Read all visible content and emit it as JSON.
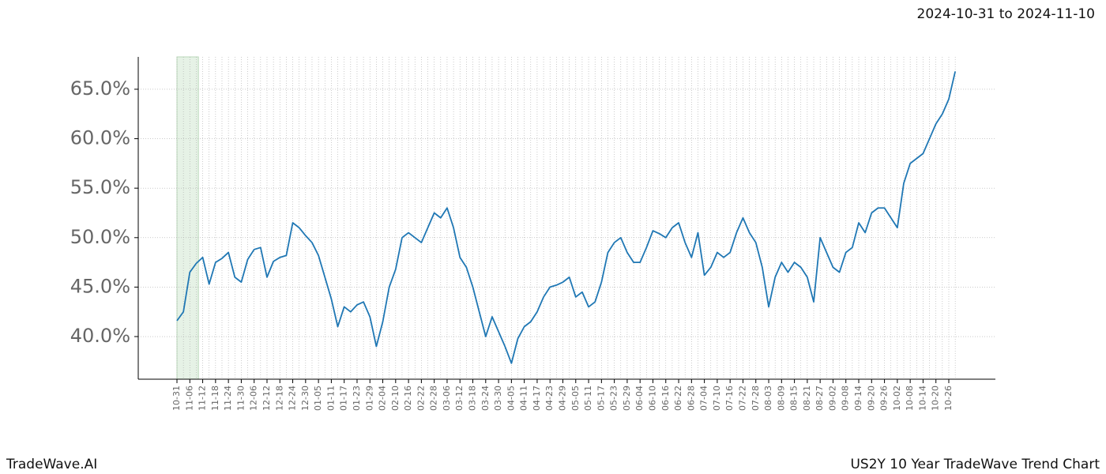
{
  "chart_data": {
    "type": "line",
    "subtitle": "2024-10-31 to 2024-11-10",
    "footer_left": "TradeWave.AI",
    "footer_right": "US2Y 10 Year TradeWave Trend Chart",
    "categories": [
      "10-31",
      null,
      "11-06",
      null,
      "11-12",
      null,
      "11-18",
      null,
      "11-24",
      null,
      "11-30",
      null,
      "12-06",
      null,
      "12-12",
      null,
      "12-18",
      null,
      "12-24",
      null,
      "12-30",
      null,
      "01-05",
      null,
      "01-11",
      null,
      "01-17",
      null,
      "01-23",
      null,
      "01-29",
      null,
      "02-04",
      null,
      "02-10",
      null,
      "02-16",
      null,
      "02-22",
      null,
      "02-28",
      null,
      "03-06",
      null,
      "03-12",
      null,
      "03-18",
      null,
      "03-24",
      null,
      "03-30",
      null,
      "04-05",
      null,
      "04-11",
      null,
      "04-17",
      null,
      "04-23",
      null,
      "04-29",
      null,
      "05-05",
      null,
      "05-11",
      null,
      "05-17",
      null,
      "05-23",
      null,
      "05-29",
      null,
      "06-04",
      null,
      "06-10",
      null,
      "06-16",
      null,
      "06-22",
      null,
      "06-28",
      null,
      "07-04",
      null,
      "07-10",
      null,
      "07-16",
      null,
      "07-22",
      null,
      "07-28",
      null,
      "08-03",
      null,
      "08-09",
      null,
      "08-15",
      null,
      "08-21",
      null,
      "08-27",
      null,
      "09-02",
      null,
      "09-08",
      null,
      "09-14",
      null,
      "09-20",
      null,
      "09-26",
      null,
      "10-02",
      null,
      "10-08",
      null,
      "10-14",
      null,
      "10-20",
      null,
      "10-26",
      null
    ],
    "values": [
      41.6,
      42.5,
      46.5,
      47.4,
      48.0,
      45.3,
      47.5,
      47.9,
      48.5,
      46.0,
      45.5,
      47.8,
      48.8,
      49.0,
      46.0,
      47.6,
      48.0,
      48.2,
      51.5,
      51.0,
      50.2,
      49.5,
      48.2,
      46.0,
      43.8,
      41.0,
      43.0,
      42.5,
      43.2,
      43.5,
      42.0,
      39.0,
      41.5,
      45.0,
      46.8,
      50.0,
      50.5,
      50.0,
      49.5,
      51.0,
      52.5,
      52.0,
      53.0,
      51.0,
      48.0,
      47.0,
      45.0,
      42.5,
      40.0,
      42.0,
      40.5,
      39.0,
      37.3,
      39.8,
      41.0,
      41.5,
      42.5,
      44.0,
      45.0,
      45.2,
      45.5,
      46.0,
      44.0,
      44.5,
      43.0,
      43.5,
      45.5,
      48.5,
      49.5,
      50.0,
      48.5,
      47.5,
      47.5,
      49.0,
      50.7,
      50.4,
      50.0,
      51.0,
      51.5,
      49.5,
      48.0,
      50.5,
      46.2,
      47.0,
      48.5,
      48.0,
      48.5,
      50.5,
      52.0,
      50.5,
      49.5,
      47.0,
      43.0,
      46.0,
      47.5,
      46.5,
      47.5,
      47.0,
      46.0,
      43.5,
      50.0,
      48.5,
      47.0,
      46.5,
      48.5,
      49.0,
      51.5,
      50.5,
      52.5,
      53.0,
      53.0,
      52.0,
      51.0,
      55.5,
      57.5,
      58.0,
      58.5,
      60.0,
      61.5,
      62.5,
      64.0,
      66.8
    ],
    "color": "#1f77b4",
    "highlight_color": "#e6f2e6",
    "ylim": [
      35.69,
      68.27
    ],
    "yticks": [
      {
        "value": 40,
        "label": "40.0%"
      },
      {
        "value": 45,
        "label": "45.0%"
      },
      {
        "value": 50,
        "label": "50.0%"
      },
      {
        "value": 55,
        "label": "55.0%"
      },
      {
        "value": 60,
        "label": "60.0%"
      },
      {
        "value": 65,
        "label": "65.0%"
      }
    ],
    "grid": true
  }
}
